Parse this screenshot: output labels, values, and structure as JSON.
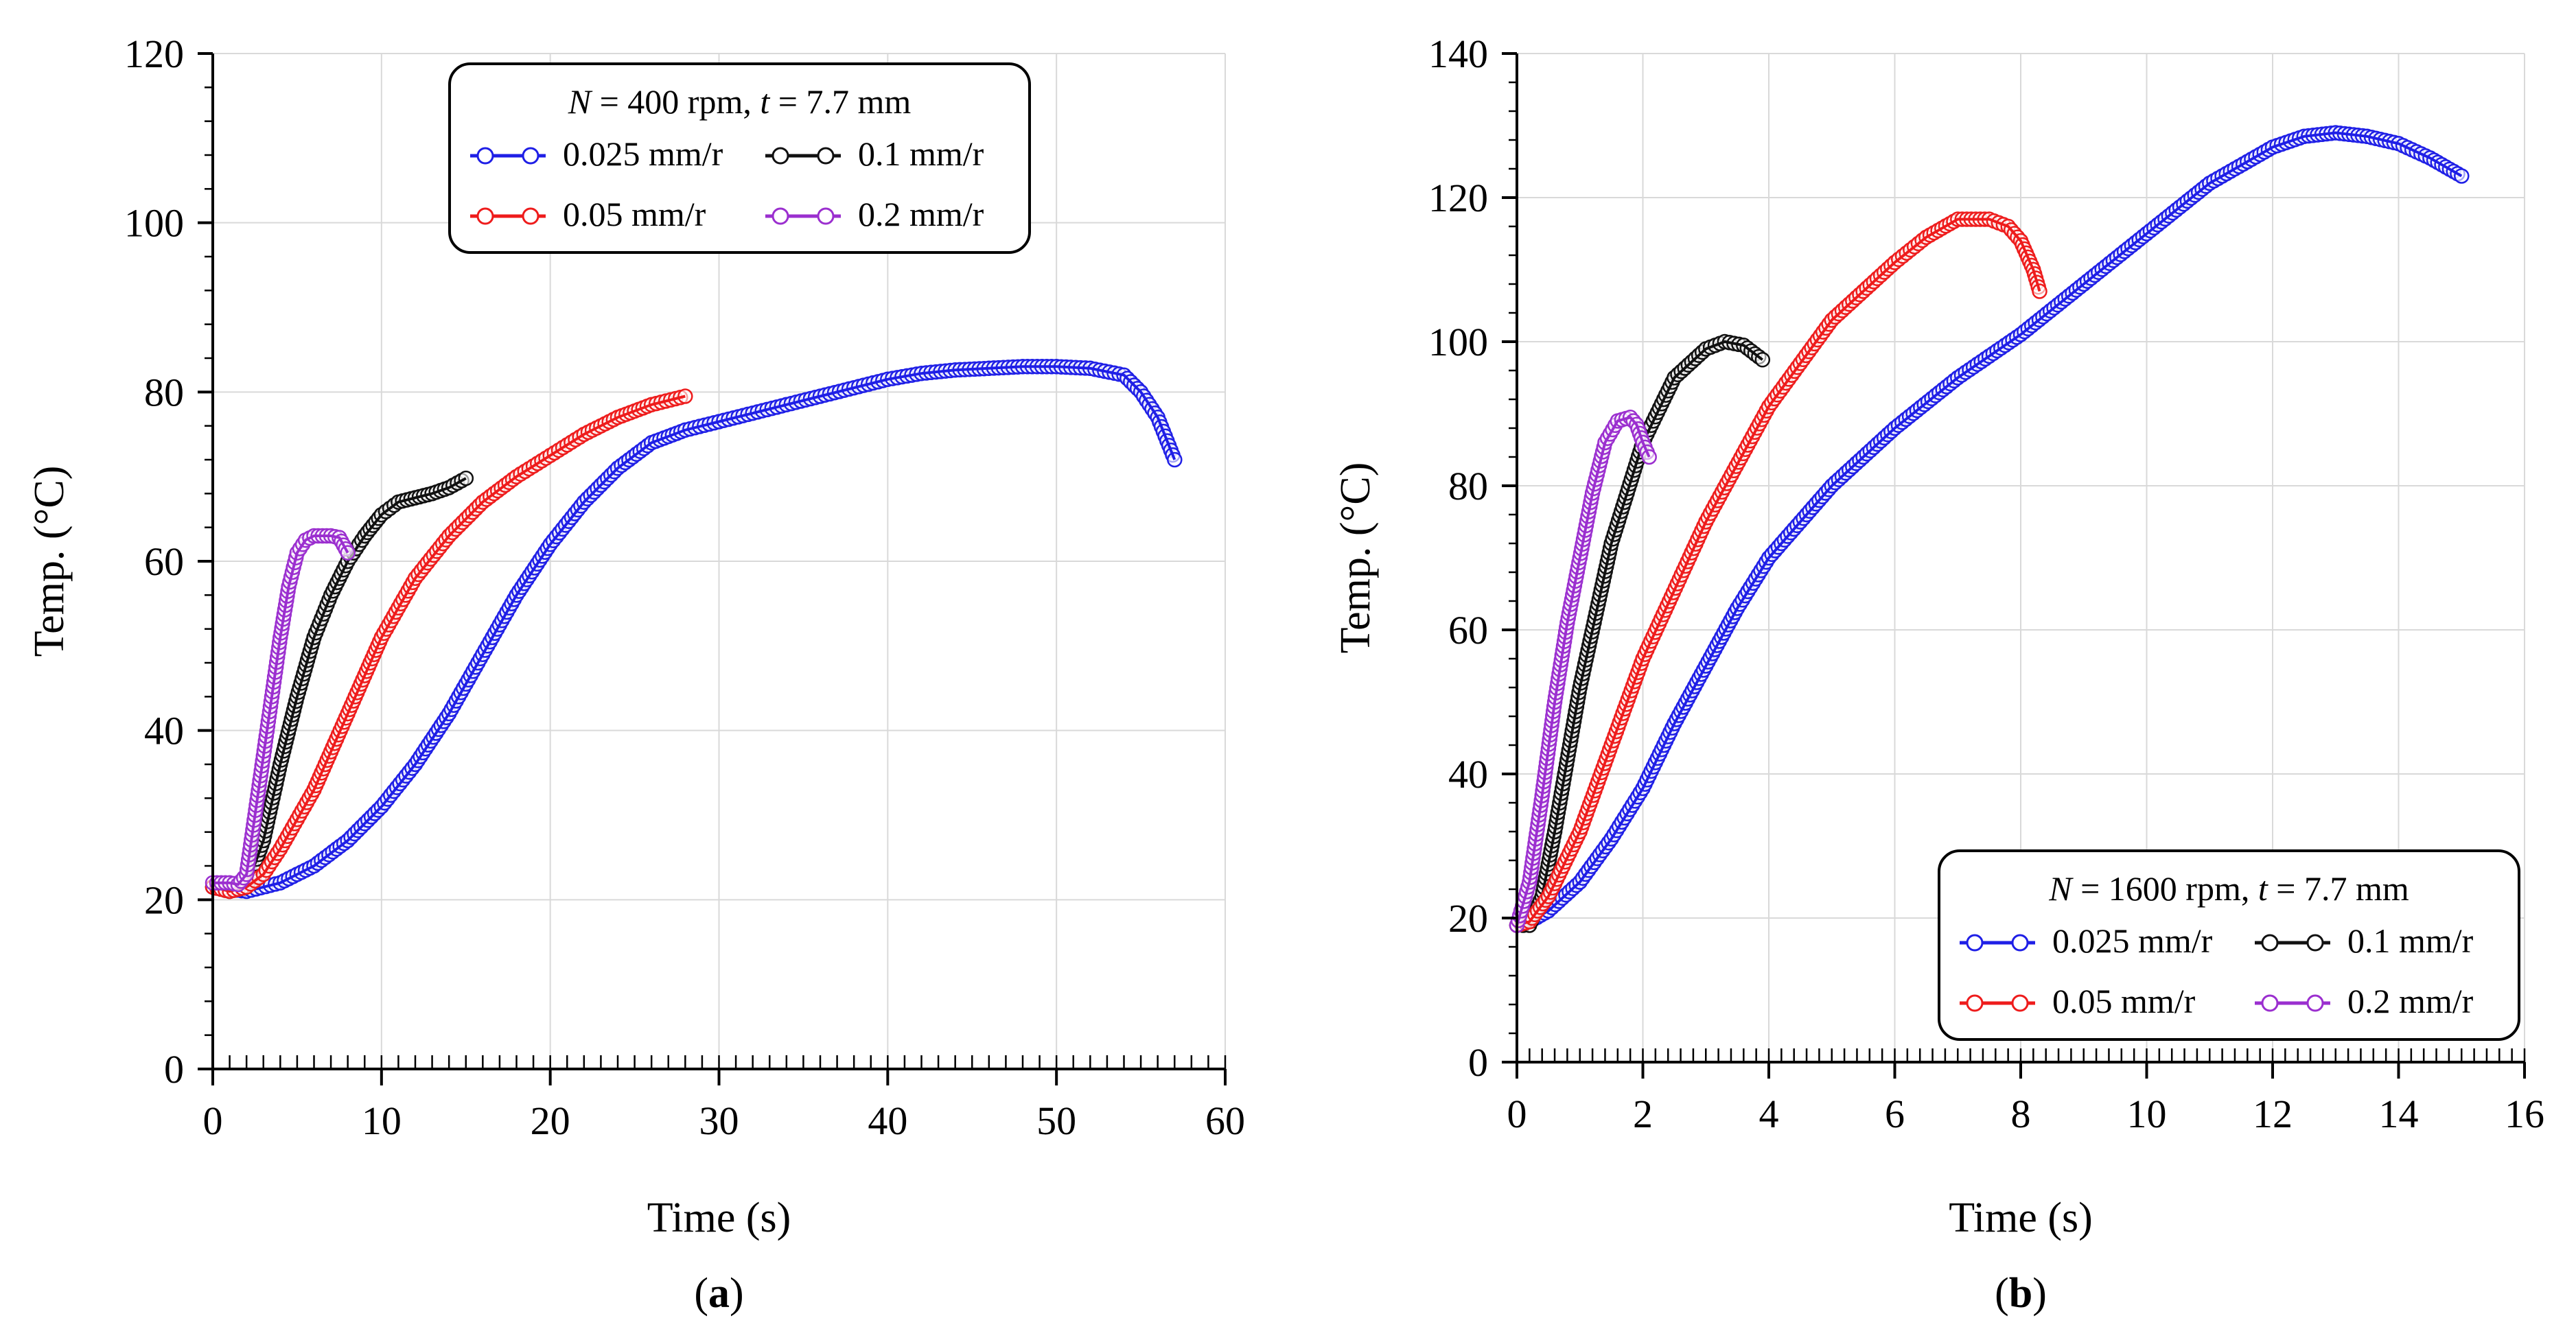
{
  "chart_data": [
    {
      "type": "line",
      "panel_label": "(a)",
      "legend_title": {
        "prefix": "N",
        "value": " = 400 rpm, ",
        "t": "t",
        "rest": " = 7.7 mm"
      },
      "xlabel": "Time (s)",
      "ylabel": "Temp. (°C)",
      "xlim": [
        0,
        60
      ],
      "ylim": [
        0,
        120
      ],
      "xticks": [
        0,
        10,
        20,
        30,
        40,
        50,
        60
      ],
      "yticks": [
        0,
        20,
        40,
        60,
        80,
        100,
        120
      ],
      "x_minor_step": 1,
      "y_minor_step": 4,
      "grid": true,
      "legend_position": "top-center",
      "series": [
        {
          "name": "0.025 mm/r",
          "color": "#1f1fe6",
          "x": [
            0,
            2,
            4,
            6,
            8,
            10,
            12,
            14,
            16,
            18,
            20,
            22,
            24,
            26,
            28,
            30,
            32,
            34,
            36,
            38,
            40,
            42,
            44,
            46,
            48,
            50,
            52,
            54,
            55,
            56,
            57
          ],
          "y": [
            21.5,
            21,
            22,
            24,
            27,
            31,
            36,
            42,
            49,
            56,
            62,
            67,
            71,
            74,
            75.5,
            76.5,
            77.5,
            78.5,
            79.5,
            80.5,
            81.5,
            82.2,
            82.6,
            82.8,
            83,
            83,
            82.8,
            82,
            80,
            77,
            72
          ]
        },
        {
          "name": "0.1 mm/r",
          "color": "#111111",
          "x": [
            0,
            1,
            2,
            3,
            4,
            5,
            6,
            7,
            8,
            9,
            10,
            11,
            12,
            13,
            14,
            15
          ],
          "y": [
            21.5,
            21,
            21.5,
            27,
            36,
            44,
            51,
            56,
            60,
            63,
            65.5,
            67,
            67.5,
            68,
            68.7,
            69.8
          ]
        },
        {
          "name": "0.05 mm/r",
          "color": "#ee1c1c",
          "x": [
            0,
            1,
            2,
            3,
            4,
            5,
            6,
            7,
            8,
            9,
            10,
            12,
            14,
            16,
            18,
            20,
            22,
            24,
            26,
            28
          ],
          "y": [
            21.5,
            21,
            21.5,
            23,
            26,
            29.5,
            33,
            37.5,
            42,
            46.5,
            51,
            58,
            63,
            67,
            70,
            72.5,
            75,
            77,
            78.5,
            79.5
          ]
        },
        {
          "name": "0.2 mm/r",
          "color": "#9b2fcf",
          "x": [
            0,
            1,
            1.5,
            2,
            2.5,
            3,
            3.5,
            4,
            4.5,
            5,
            5.5,
            6,
            6.5,
            7,
            7.5,
            8
          ],
          "y": [
            22,
            22,
            21.8,
            23,
            30,
            37,
            44,
            51,
            57,
            61,
            62.5,
            63,
            63,
            63,
            62.8,
            61
          ]
        }
      ]
    },
    {
      "type": "line",
      "panel_label": "(b)",
      "legend_title": {
        "prefix": "N",
        "value": " = 1600 rpm, ",
        "t": "t",
        "rest": " = 7.7 mm"
      },
      "xlabel": "Time (s)",
      "ylabel": "Temp. (°C)",
      "xlim": [
        0,
        16
      ],
      "ylim": [
        0,
        140
      ],
      "xticks": [
        0,
        2,
        4,
        6,
        8,
        10,
        12,
        14,
        16
      ],
      "yticks": [
        0,
        20,
        40,
        60,
        80,
        100,
        120,
        140
      ],
      "x_minor_step": 0.2,
      "y_minor_step": 4,
      "grid": true,
      "legend_position": "bottom-right",
      "series": [
        {
          "name": "0.025 mm/r",
          "color": "#1f1fe6",
          "x": [
            0,
            0.2,
            0.5,
            1,
            1.5,
            2,
            2.5,
            3,
            3.5,
            4,
            5,
            6,
            7,
            8,
            9,
            10,
            11,
            12,
            12.5,
            13,
            13.5,
            14,
            14.5,
            15
          ],
          "y": [
            19,
            19.5,
            21,
            25,
            31,
            38,
            47,
            55,
            63,
            70,
            80,
            88,
            95,
            101,
            108,
            115,
            122,
            127,
            128.5,
            129,
            128.5,
            127.5,
            125.5,
            123
          ]
        },
        {
          "name": "0.1 mm/r",
          "color": "#111111",
          "x": [
            0,
            0.1,
            0.2,
            0.4,
            0.6,
            0.8,
            1,
            1.5,
            2,
            2.5,
            3,
            3.3,
            3.6,
            3.9
          ],
          "y": [
            19,
            19,
            19,
            23,
            32,
            42,
            52,
            72,
            86,
            95,
            99,
            100,
            99.5,
            97.5
          ]
        },
        {
          "name": "0.05 mm/r",
          "color": "#ee1c1c",
          "x": [
            0,
            0.2,
            0.5,
            1,
            1.5,
            2,
            3,
            4,
            5,
            6,
            6.5,
            7,
            7.5,
            7.8,
            8,
            8.2,
            8.3
          ],
          "y": [
            19,
            19.5,
            23,
            32,
            44,
            56,
            75,
            91,
            103,
            111,
            114.5,
            117,
            117,
            116,
            114,
            110,
            107
          ]
        },
        {
          "name": "0.2 mm/r",
          "color": "#9b2fcf",
          "x": [
            0,
            0.2,
            0.4,
            0.6,
            0.8,
            1,
            1.2,
            1.4,
            1.6,
            1.8,
            1.9,
            2,
            2.1
          ],
          "y": [
            19,
            25,
            37,
            50,
            61,
            70,
            79,
            86,
            89,
            89.5,
            88.5,
            86,
            84
          ]
        }
      ]
    }
  ]
}
